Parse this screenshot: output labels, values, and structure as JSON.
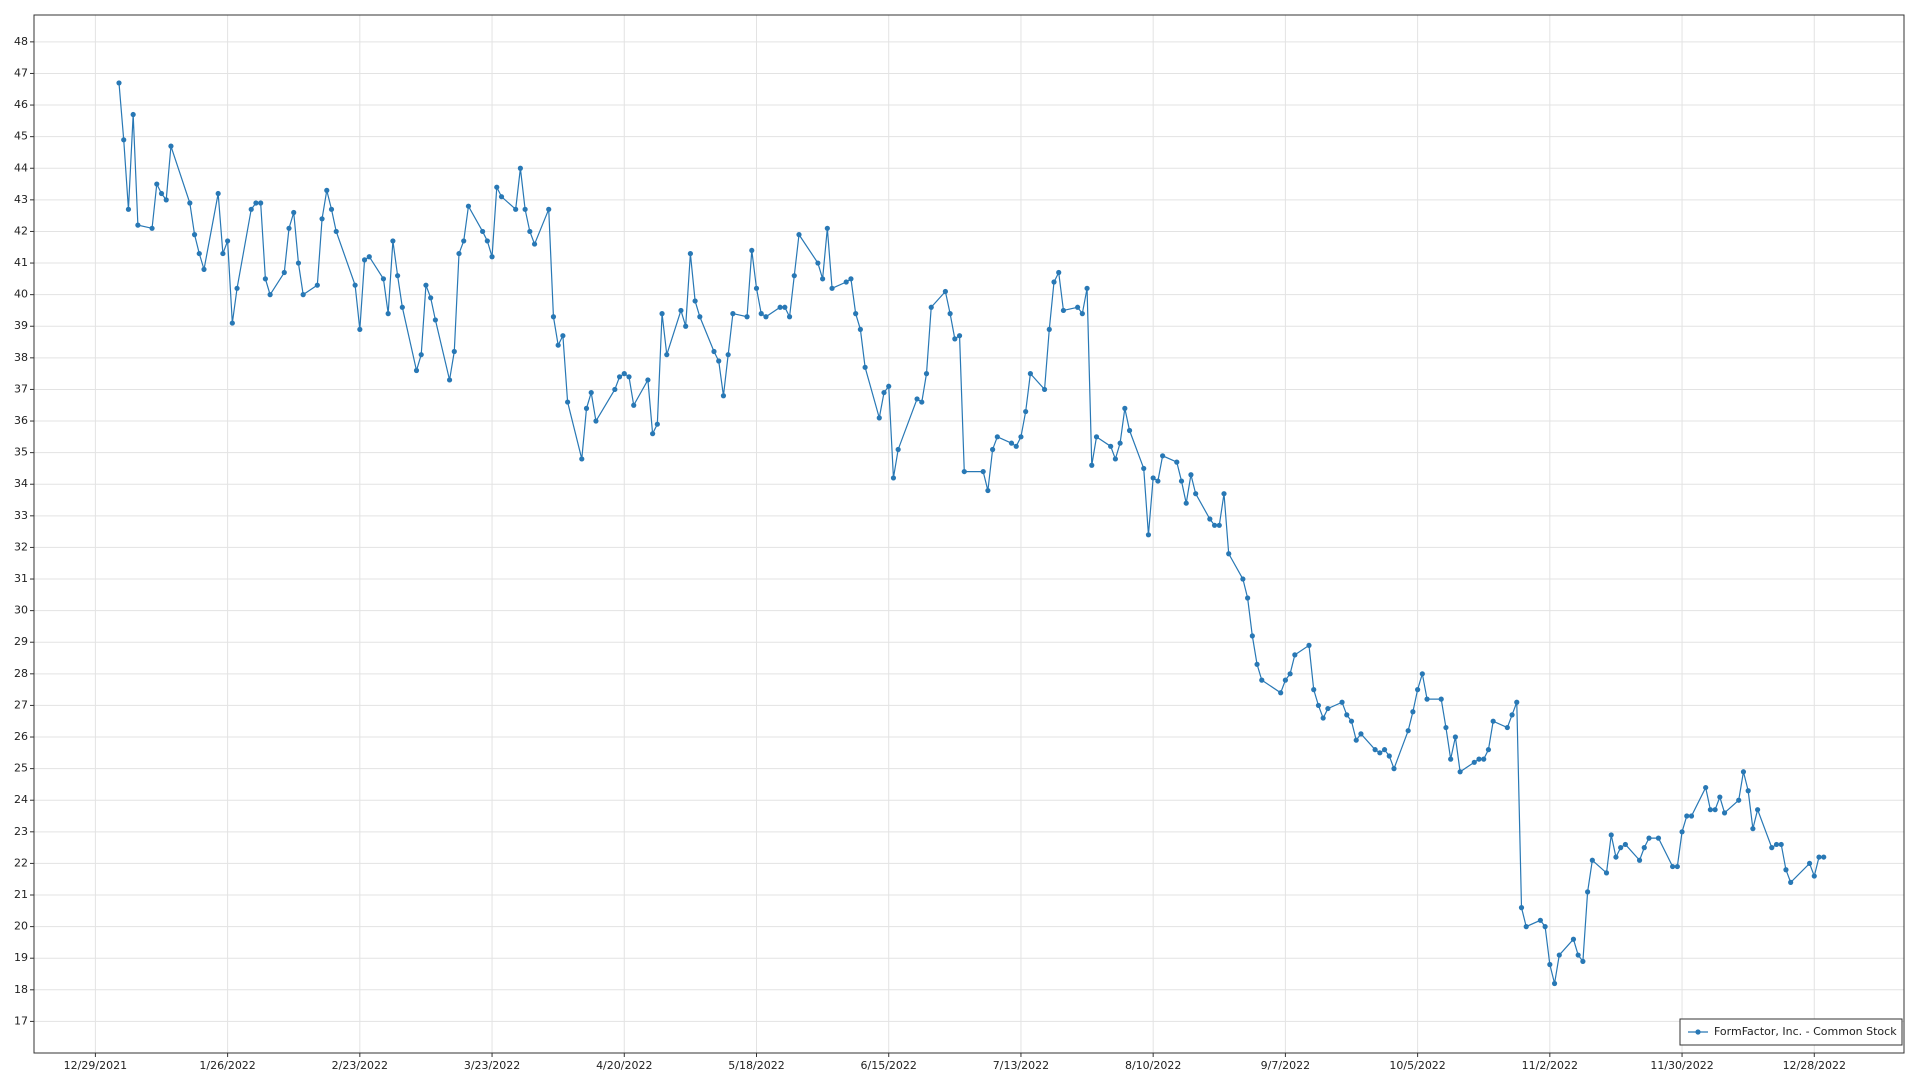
{
  "chart_data": {
    "type": "line",
    "x": [
      "2022-01-03",
      "2022-01-04",
      "2022-01-05",
      "2022-01-06",
      "2022-01-07",
      "2022-01-10",
      "2022-01-11",
      "2022-01-12",
      "2022-01-13",
      "2022-01-14",
      "2022-01-18",
      "2022-01-19",
      "2022-01-20",
      "2022-01-21",
      "2022-01-24",
      "2022-01-25",
      "2022-01-26",
      "2022-01-27",
      "2022-01-28",
      "2022-01-31",
      "2022-02-01",
      "2022-02-02",
      "2022-02-03",
      "2022-02-04",
      "2022-02-07",
      "2022-02-08",
      "2022-02-09",
      "2022-02-10",
      "2022-02-11",
      "2022-02-14",
      "2022-02-15",
      "2022-02-16",
      "2022-02-17",
      "2022-02-18",
      "2022-02-22",
      "2022-02-23",
      "2022-02-24",
      "2022-02-25",
      "2022-02-28",
      "2022-03-01",
      "2022-03-02",
      "2022-03-03",
      "2022-03-04",
      "2022-03-07",
      "2022-03-08",
      "2022-03-09",
      "2022-03-10",
      "2022-03-11",
      "2022-03-14",
      "2022-03-15",
      "2022-03-16",
      "2022-03-17",
      "2022-03-18",
      "2022-03-21",
      "2022-03-22",
      "2022-03-23",
      "2022-03-24",
      "2022-03-25",
      "2022-03-28",
      "2022-03-29",
      "2022-03-30",
      "2022-03-31",
      "2022-04-01",
      "2022-04-04",
      "2022-04-05",
      "2022-04-06",
      "2022-04-07",
      "2022-04-08",
      "2022-04-11",
      "2022-04-12",
      "2022-04-13",
      "2022-04-14",
      "2022-04-18",
      "2022-04-19",
      "2022-04-20",
      "2022-04-21",
      "2022-04-22",
      "2022-04-25",
      "2022-04-26",
      "2022-04-27",
      "2022-04-28",
      "2022-04-29",
      "2022-05-02",
      "2022-05-03",
      "2022-05-04",
      "2022-05-05",
      "2022-05-06",
      "2022-05-09",
      "2022-05-10",
      "2022-05-11",
      "2022-05-12",
      "2022-05-13",
      "2022-05-16",
      "2022-05-17",
      "2022-05-18",
      "2022-05-19",
      "2022-05-20",
      "2022-05-23",
      "2022-05-24",
      "2022-05-25",
      "2022-05-26",
      "2022-05-27",
      "2022-05-31",
      "2022-06-01",
      "2022-06-02",
      "2022-06-03",
      "2022-06-06",
      "2022-06-07",
      "2022-06-08",
      "2022-06-09",
      "2022-06-10",
      "2022-06-13",
      "2022-06-14",
      "2022-06-15",
      "2022-06-16",
      "2022-06-17",
      "2022-06-21",
      "2022-06-22",
      "2022-06-23",
      "2022-06-24",
      "2022-06-27",
      "2022-06-28",
      "2022-06-29",
      "2022-06-30",
      "2022-07-01",
      "2022-07-05",
      "2022-07-06",
      "2022-07-07",
      "2022-07-08",
      "2022-07-11",
      "2022-07-12",
      "2022-07-13",
      "2022-07-14",
      "2022-07-15",
      "2022-07-18",
      "2022-07-19",
      "2022-07-20",
      "2022-07-21",
      "2022-07-22",
      "2022-07-25",
      "2022-07-26",
      "2022-07-27",
      "2022-07-28",
      "2022-07-29",
      "2022-08-01",
      "2022-08-02",
      "2022-08-03",
      "2022-08-04",
      "2022-08-05",
      "2022-08-08",
      "2022-08-09",
      "2022-08-10",
      "2022-08-11",
      "2022-08-12",
      "2022-08-15",
      "2022-08-16",
      "2022-08-17",
      "2022-08-18",
      "2022-08-19",
      "2022-08-22",
      "2022-08-23",
      "2022-08-24",
      "2022-08-25",
      "2022-08-26",
      "2022-08-29",
      "2022-08-30",
      "2022-08-31",
      "2022-09-01",
      "2022-09-02",
      "2022-09-06",
      "2022-09-07",
      "2022-09-08",
      "2022-09-09",
      "2022-09-12",
      "2022-09-13",
      "2022-09-14",
      "2022-09-15",
      "2022-09-16",
      "2022-09-19",
      "2022-09-20",
      "2022-09-21",
      "2022-09-22",
      "2022-09-23",
      "2022-09-26",
      "2022-09-27",
      "2022-09-28",
      "2022-09-29",
      "2022-09-30",
      "2022-10-03",
      "2022-10-04",
      "2022-10-05",
      "2022-10-06",
      "2022-10-07",
      "2022-10-10",
      "2022-10-11",
      "2022-10-12",
      "2022-10-13",
      "2022-10-14",
      "2022-10-17",
      "2022-10-18",
      "2022-10-19",
      "2022-10-20",
      "2022-10-21",
      "2022-10-24",
      "2022-10-25",
      "2022-10-26",
      "2022-10-27",
      "2022-10-28",
      "2022-10-31",
      "2022-11-01",
      "2022-11-02",
      "2022-11-03",
      "2022-11-04",
      "2022-11-07",
      "2022-11-08",
      "2022-11-09",
      "2022-11-10",
      "2022-11-11",
      "2022-11-14",
      "2022-11-15",
      "2022-11-16",
      "2022-11-17",
      "2022-11-18",
      "2022-11-21",
      "2022-11-22",
      "2022-11-23",
      "2022-11-25",
      "2022-11-28",
      "2022-11-29",
      "2022-11-30",
      "2022-12-01",
      "2022-12-02",
      "2022-12-05",
      "2022-12-06",
      "2022-12-07",
      "2022-12-08",
      "2022-12-09",
      "2022-12-12",
      "2022-12-13",
      "2022-12-14",
      "2022-12-15",
      "2022-12-16",
      "2022-12-19",
      "2022-12-20",
      "2022-12-21",
      "2022-12-22",
      "2022-12-23",
      "2022-12-27",
      "2022-12-28",
      "2022-12-29",
      "2022-12-30"
    ],
    "series": [
      {
        "name": "FormFactor, Inc. - Common Stock",
        "color": "#2878b5",
        "values": [
          46.7,
          44.9,
          42.7,
          45.7,
          42.2,
          42.1,
          43.5,
          43.2,
          43.0,
          44.7,
          42.9,
          41.9,
          41.3,
          40.8,
          43.2,
          41.3,
          41.7,
          39.1,
          40.2,
          42.7,
          42.9,
          42.9,
          40.5,
          40.0,
          40.7,
          42.1,
          42.6,
          41.0,
          40.0,
          40.3,
          42.4,
          43.3,
          42.7,
          42.0,
          40.3,
          38.9,
          41.1,
          41.2,
          40.5,
          39.4,
          41.7,
          40.6,
          39.6,
          37.6,
          38.1,
          40.3,
          39.9,
          39.2,
          37.3,
          38.2,
          41.3,
          41.7,
          42.8,
          42.0,
          41.7,
          41.2,
          43.4,
          43.1,
          42.7,
          44.0,
          42.7,
          42.0,
          41.6,
          42.7,
          39.3,
          38.4,
          38.7,
          36.6,
          34.8,
          36.4,
          36.9,
          36.0,
          37.0,
          37.4,
          37.5,
          37.4,
          36.5,
          37.3,
          35.6,
          35.9,
          39.4,
          38.1,
          39.5,
          39.0,
          41.3,
          39.8,
          39.3,
          38.2,
          37.9,
          36.8,
          38.1,
          39.4,
          39.3,
          41.4,
          40.2,
          39.4,
          39.3,
          39.6,
          39.6,
          39.3,
          40.6,
          41.9,
          41.0,
          40.5,
          42.1,
          40.2,
          40.4,
          40.5,
          39.4,
          38.9,
          37.7,
          36.1,
          36.9,
          37.1,
          34.2,
          35.1,
          36.7,
          36.6,
          37.5,
          39.6,
          40.1,
          39.4,
          38.6,
          38.7,
          34.4,
          34.4,
          33.8,
          35.1,
          35.5,
          35.3,
          35.2,
          35.5,
          36.3,
          37.5,
          37.0,
          38.9,
          40.4,
          40.7,
          39.5,
          39.6,
          39.4,
          40.2,
          34.6,
          35.5,
          35.2,
          34.8,
          35.3,
          36.4,
          35.7,
          34.5,
          32.4,
          34.2,
          34.1,
          34.9,
          34.7,
          34.1,
          33.4,
          34.3,
          33.7,
          32.9,
          32.7,
          32.7,
          33.7,
          31.8,
          31.0,
          30.4,
          29.2,
          28.3,
          27.8,
          27.4,
          27.8,
          28.0,
          28.6,
          28.9,
          27.5,
          27.0,
          26.6,
          26.9,
          27.1,
          26.7,
          26.5,
          25.9,
          26.1,
          25.6,
          25.5,
          25.6,
          25.4,
          25.0,
          26.2,
          26.8,
          27.5,
          28.0,
          27.2,
          27.2,
          26.3,
          25.3,
          26.0,
          24.9,
          25.2,
          25.3,
          25.3,
          25.6,
          26.5,
          26.3,
          26.7,
          27.1,
          20.6,
          20.0,
          20.2,
          20.0,
          18.8,
          18.2,
          19.1,
          19.6,
          19.1,
          18.9,
          21.1,
          22.1,
          21.7,
          22.9,
          22.2,
          22.5,
          22.6,
          22.1,
          22.5,
          22.8,
          22.8,
          21.9,
          21.9,
          23.0,
          23.5,
          23.5,
          24.4,
          23.7,
          23.7,
          24.1,
          23.6,
          24.0,
          24.9,
          24.3,
          23.1,
          23.7,
          22.5,
          22.6,
          22.6,
          21.8,
          21.4,
          22.0,
          21.6,
          22.2,
          22.2
        ]
      }
    ],
    "xlim": [
      "2021-12-16",
      "2023-01-16"
    ],
    "xticks": [
      {
        "value": "2021-12-29",
        "label": "12/29/2021"
      },
      {
        "value": "2022-01-26",
        "label": "1/26/2022"
      },
      {
        "value": "2022-02-23",
        "label": "2/23/2022"
      },
      {
        "value": "2022-03-23",
        "label": "3/23/2022"
      },
      {
        "value": "2022-04-20",
        "label": "4/20/2022"
      },
      {
        "value": "2022-05-18",
        "label": "5/18/2022"
      },
      {
        "value": "2022-06-15",
        "label": "6/15/2022"
      },
      {
        "value": "2022-07-13",
        "label": "7/13/2022"
      },
      {
        "value": "2022-08-10",
        "label": "8/10/2022"
      },
      {
        "value": "2022-09-07",
        "label": "9/7/2022"
      },
      {
        "value": "2022-10-05",
        "label": "10/5/2022"
      },
      {
        "value": "2022-11-02",
        "label": "11/2/2022"
      },
      {
        "value": "2022-11-30",
        "label": "11/30/2022"
      },
      {
        "value": "2022-12-28",
        "label": "12/28/2022"
      }
    ],
    "ylim": [
      16,
      48.85
    ],
    "yticks": [
      17,
      18,
      19,
      20,
      21,
      22,
      23,
      24,
      25,
      26,
      27,
      28,
      29,
      30,
      31,
      32,
      33,
      34,
      35,
      36,
      37,
      38,
      39,
      40,
      41,
      42,
      43,
      44,
      45,
      46,
      47,
      48
    ],
    "grid": true,
    "legend": "lower right",
    "markers": true
  }
}
